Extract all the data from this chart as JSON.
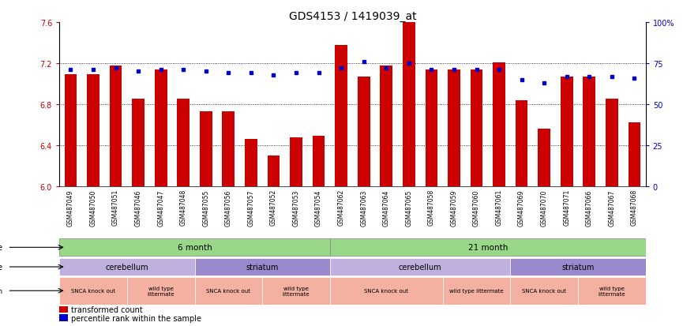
{
  "title": "GDS4153 / 1419039_at",
  "samples": [
    "GSM487049",
    "GSM487050",
    "GSM487051",
    "GSM487046",
    "GSM487047",
    "GSM487048",
    "GSM487055",
    "GSM487056",
    "GSM487057",
    "GSM487052",
    "GSM487053",
    "GSM487054",
    "GSM487062",
    "GSM487063",
    "GSM487064",
    "GSM487065",
    "GSM487058",
    "GSM487059",
    "GSM487060",
    "GSM487061",
    "GSM487069",
    "GSM487070",
    "GSM487071",
    "GSM487066",
    "GSM487067",
    "GSM487068"
  ],
  "bar_values": [
    7.09,
    7.09,
    7.18,
    6.85,
    7.14,
    6.85,
    6.73,
    6.73,
    6.46,
    6.3,
    6.48,
    6.49,
    7.38,
    7.07,
    7.18,
    7.6,
    7.14,
    7.14,
    7.14,
    7.21,
    6.84,
    6.56,
    7.07,
    7.07,
    6.85,
    6.62
  ],
  "percentile_values": [
    71,
    71,
    72,
    70,
    71,
    71,
    70,
    69,
    69,
    68,
    69,
    69,
    72,
    76,
    72,
    75,
    71,
    71,
    71,
    71,
    65,
    63,
    67,
    67,
    67,
    66
  ],
  "ylim_left": [
    6.0,
    7.6
  ],
  "ylim_right": [
    0,
    100
  ],
  "yticks_left": [
    6.0,
    6.4,
    6.8,
    7.2,
    7.6
  ],
  "yticks_right": [
    0,
    25,
    50,
    75,
    100
  ],
  "bar_color": "#cc0000",
  "dot_color": "#0000cc",
  "time_groups": [
    {
      "label": "6 month",
      "start": 0,
      "end": 12,
      "color": "#98d888"
    },
    {
      "label": "21 month",
      "start": 12,
      "end": 26,
      "color": "#98d888"
    }
  ],
  "tissue_groups": [
    {
      "label": "cerebellum",
      "start": 0,
      "end": 6,
      "color": "#c0b0e0"
    },
    {
      "label": "striatum",
      "start": 6,
      "end": 12,
      "color": "#9988cc"
    },
    {
      "label": "cerebellum",
      "start": 12,
      "end": 20,
      "color": "#c0b0e0"
    },
    {
      "label": "striatum",
      "start": 20,
      "end": 26,
      "color": "#9988cc"
    }
  ],
  "geno_groups": [
    {
      "label": "SNCA knock out",
      "start": 0,
      "end": 3
    },
    {
      "label": "wild type\nlittermate",
      "start": 3,
      "end": 6
    },
    {
      "label": "SNCA knock out",
      "start": 6,
      "end": 9
    },
    {
      "label": "wild type\nlittermate",
      "start": 9,
      "end": 12
    },
    {
      "label": "SNCA knock out",
      "start": 12,
      "end": 17
    },
    {
      "label": "wild type littermate",
      "start": 17,
      "end": 20
    },
    {
      "label": "SNCA knock out",
      "start": 20,
      "end": 23
    },
    {
      "label": "wild type\nlittermate",
      "start": 23,
      "end": 26
    }
  ],
  "geno_color": "#f4b0a0",
  "legend_bar_label": "transformed count",
  "legend_dot_label": "percentile rank within the sample",
  "xtick_bg": "#d8d8d8"
}
